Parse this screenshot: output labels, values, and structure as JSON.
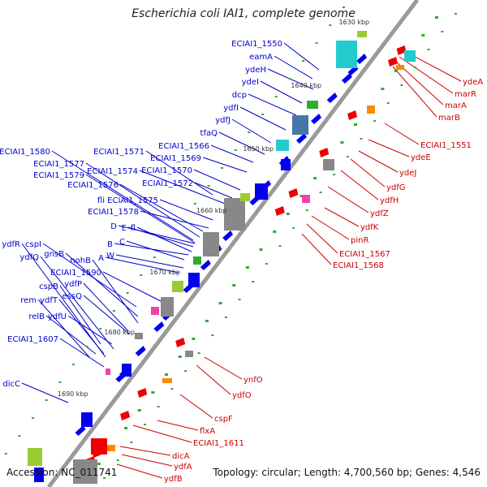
{
  "header": {
    "title": "Escherichia coli IAI1, complete genome"
  },
  "footer": {
    "accession": "Accession: NC_011741",
    "summary": "Topology: circular; Length: 4,700,560 bp; Genes: 4,546"
  },
  "ruler": {
    "ticks": [
      "1630 kbp",
      "1640 kbp",
      "1650 kbp",
      "1660 kbp",
      "1670 kbp",
      "1680 kbp",
      "1690 kbp"
    ]
  },
  "colors": {
    "backbone": "#999999",
    "forward_gene": "#0000ee",
    "reverse_gene": "#ee0000",
    "forward_label": "#0000cc",
    "reverse_label": "#cc0000",
    "rrna_cyan": "#22cccc",
    "steel": "#4477aa",
    "gray": "#888888",
    "lime": "#99cc33",
    "magenta": "#ee44aa",
    "orange": "#ff8800",
    "green_mark": "#33aa33"
  },
  "labels": {
    "forward": [
      "ECIAI1_1550",
      "eamA",
      "ydeH",
      "ydeI",
      "dcp",
      "ydfI",
      "ydfJ",
      "tfaQ",
      "ECIAI1_1566",
      "ECIAI1_1571",
      "ECIAI1_1569",
      "ECIAI1_1570",
      "ECIAI1_1572",
      "ECIAI1_1580",
      "ECIAI1_1577",
      "ECIAI1_1579",
      "ECIAI1_1574",
      "ECIAI1_1576",
      "fli ECIAI1_1575",
      "ECIAI1_1578",
      "D",
      "E",
      "fl",
      "B",
      "C",
      "A",
      "W",
      "ydfR",
      "cspI",
      "ydfQ",
      "gnsB",
      "nohB",
      "ECIAI1_1590",
      "ydfP",
      "cspB",
      "essQ",
      "rem",
      "ydfT",
      "relB",
      "ydfU",
      "ECIAI1_1607",
      "dicC"
    ],
    "reverse": [
      "ydeA",
      "marR",
      "marA",
      "marB",
      "ECIAI1_1551",
      "ydeE",
      "ydeJ",
      "ydfG",
      "ydfH",
      "ydfZ",
      "ydfK",
      "pinR",
      "ECIAI1_1567",
      "ECIAI1_1568",
      "ynfO",
      "ydfO",
      "cspF",
      "flxA",
      "ECIAI1_1611",
      "dicA",
      "ydfA",
      "ydfB"
    ]
  }
}
